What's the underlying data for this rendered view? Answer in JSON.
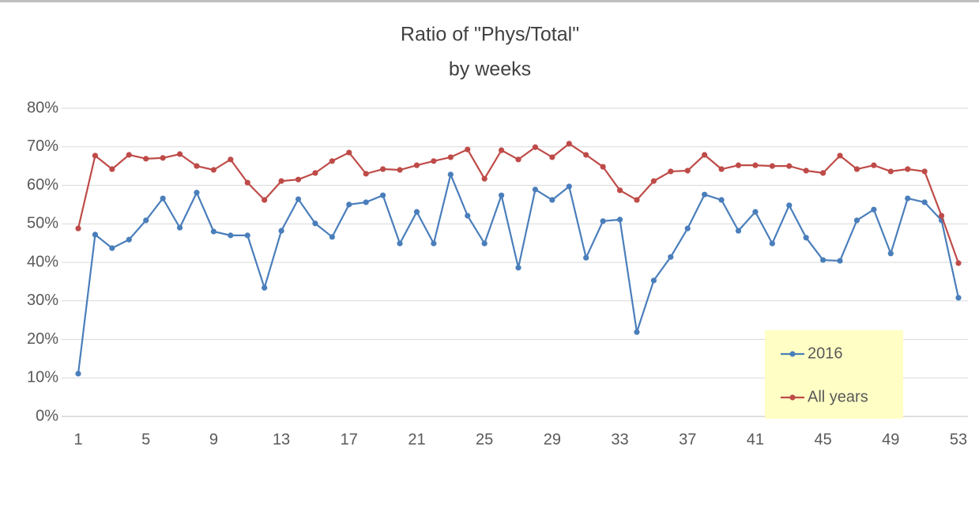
{
  "chart_data": {
    "type": "line",
    "title": "Ratio  of \"Phys/Total\"",
    "subtitle": "by weeks",
    "x": [
      1,
      2,
      3,
      4,
      5,
      6,
      7,
      8,
      9,
      10,
      11,
      12,
      13,
      14,
      15,
      16,
      17,
      18,
      19,
      20,
      21,
      22,
      23,
      24,
      25,
      26,
      27,
      28,
      29,
      30,
      31,
      32,
      33,
      34,
      35,
      36,
      37,
      38,
      39,
      40,
      41,
      42,
      43,
      44,
      45,
      46,
      47,
      48,
      49,
      50,
      51,
      52,
      53
    ],
    "xlim": [
      1,
      53
    ],
    "xticks": [
      1,
      5,
      9,
      13,
      17,
      21,
      25,
      29,
      33,
      37,
      41,
      45,
      49,
      53
    ],
    "ylim": [
      0,
      80
    ],
    "yticks": [
      {
        "value": 0,
        "label": "0%"
      },
      {
        "value": 10,
        "label": "10%"
      },
      {
        "value": 20,
        "label": "20%"
      },
      {
        "value": 30,
        "label": "30%"
      },
      {
        "value": 40,
        "label": "40%"
      },
      {
        "value": 50,
        "label": "50%"
      },
      {
        "value": 60,
        "label": "60%"
      },
      {
        "value": 70,
        "label": "70%"
      },
      {
        "value": 80,
        "label": "80%"
      }
    ],
    "grid": true,
    "legend_position": "lower right",
    "series": [
      {
        "name": "2016",
        "color": "#4a7ebb",
        "values": [
          11.1,
          47.2,
          43.7,
          45.9,
          50.9,
          56.6,
          49.0,
          58.1,
          48.0,
          47.0,
          47.0,
          33.4,
          48.2,
          56.4,
          50.1,
          46.6,
          55.0,
          55.6,
          57.4,
          44.9,
          53.1,
          44.9,
          62.8,
          52.1,
          44.9,
          57.4,
          38.6,
          58.9,
          56.2,
          59.7,
          41.2,
          50.7,
          51.1,
          21.9,
          35.3,
          41.4,
          48.8,
          57.6,
          56.2,
          48.2,
          53.1,
          44.9,
          54.8,
          46.4,
          40.6,
          40.4,
          50.9,
          53.7,
          42.3,
          56.6,
          55.6,
          50.9,
          30.8
        ]
      },
      {
        "name": "All years",
        "color": "#be4b48",
        "values": [
          48.8,
          67.7,
          64.2,
          67.9,
          66.9,
          67.1,
          68.1,
          65.0,
          64.0,
          66.7,
          60.7,
          56.2,
          61.1,
          61.5,
          63.2,
          66.3,
          68.5,
          63.0,
          64.2,
          64.0,
          65.2,
          66.3,
          67.3,
          69.3,
          61.7,
          69.1,
          66.7,
          69.9,
          67.3,
          70.8,
          67.9,
          64.8,
          58.7,
          56.2,
          61.1,
          63.6,
          63.8,
          67.9,
          64.2,
          65.2,
          65.2,
          65.0,
          65.0,
          63.8,
          63.2,
          67.7,
          64.2,
          65.2,
          63.6,
          64.2,
          63.6,
          52.1,
          39.8
        ]
      }
    ]
  }
}
